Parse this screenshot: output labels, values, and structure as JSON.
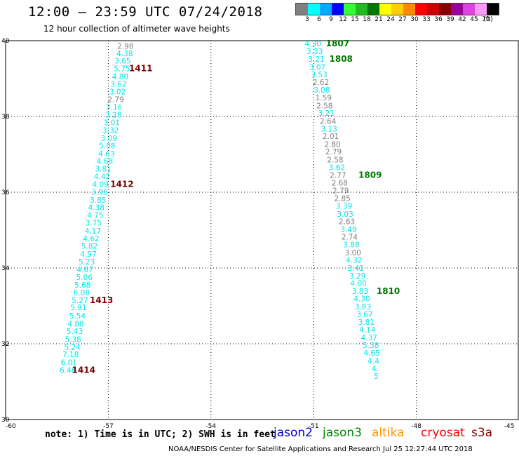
{
  "title": "12:00 – 23:59 UTC 07/24/2018",
  "subtitle": "12 hour collection of altimeter wave heights",
  "legend": {
    "unit": "(ft)",
    "bins": [
      {
        "label": "3",
        "color": "#808080"
      },
      {
        "label": "6",
        "color": "#00ffff"
      },
      {
        "label": "9",
        "color": "#00aaff"
      },
      {
        "label": "12",
        "color": "#0000ff"
      },
      {
        "label": "15",
        "color": "#33ff33"
      },
      {
        "label": "18",
        "color": "#22bb22"
      },
      {
        "label": "21",
        "color": "#007700"
      },
      {
        "label": "24",
        "color": "#ffff00"
      },
      {
        "label": "27",
        "color": "#ffcc00"
      },
      {
        "label": "30",
        "color": "#ff8800"
      },
      {
        "label": "33",
        "color": "#ff0000"
      },
      {
        "label": "36",
        "color": "#cc0000"
      },
      {
        "label": "39",
        "color": "#880000"
      },
      {
        "label": "42",
        "color": "#990099"
      },
      {
        "label": "45",
        "color": "#dd44dd"
      },
      {
        "label": "70",
        "color": "#ff99ff"
      },
      {
        "label": "",
        "color": "#000000"
      }
    ]
  },
  "axes": {
    "lon_ticks": [
      "-60",
      "-57",
      "-54",
      "-51",
      "-48",
      "-45"
    ],
    "lat_ticks": [
      "40",
      "38",
      "36",
      "34",
      "32",
      "30"
    ]
  },
  "track_a": [
    {
      "lon": -56.5,
      "lat": 39.86,
      "v": "2.98",
      "c": "gray"
    },
    {
      "lon": -56.52,
      "lat": 39.67,
      "v": "4.38",
      "c": "cyan"
    },
    {
      "lon": -56.58,
      "lat": 39.47,
      "v": "3.65",
      "c": "cyan"
    },
    {
      "lon": -56.6,
      "lat": 39.27,
      "v": "5.75",
      "c": "cyan"
    },
    {
      "lon": -56.65,
      "lat": 39.06,
      "v": "4.80",
      "c": "cyan"
    },
    {
      "lon": -56.7,
      "lat": 38.86,
      "v": "3.62",
      "c": "cyan"
    },
    {
      "lon": -56.73,
      "lat": 38.66,
      "v": "3.02",
      "c": "cyan"
    },
    {
      "lon": -56.78,
      "lat": 38.45,
      "v": "2.79",
      "c": "gray"
    },
    {
      "lon": -56.83,
      "lat": 38.25,
      "v": "3.16",
      "c": "cyan"
    },
    {
      "lon": -56.85,
      "lat": 38.05,
      "v": "3.28",
      "c": "cyan"
    },
    {
      "lon": -56.9,
      "lat": 37.84,
      "v": "3.01",
      "c": "cyan"
    },
    {
      "lon": -56.93,
      "lat": 37.64,
      "v": "3.32",
      "c": "cyan"
    },
    {
      "lon": -56.98,
      "lat": 37.43,
      "v": "3.09",
      "c": "cyan"
    },
    {
      "lon": -57.03,
      "lat": 37.23,
      "v": "5.08",
      "c": "cyan"
    },
    {
      "lon": -57.05,
      "lat": 37.02,
      "v": "4.63",
      "c": "cyan"
    },
    {
      "lon": -57.1,
      "lat": 36.82,
      "v": "4.68",
      "c": "cyan"
    },
    {
      "lon": -57.15,
      "lat": 36.62,
      "v": "3.81",
      "c": "cyan"
    },
    {
      "lon": -57.18,
      "lat": 36.42,
      "v": "4.42",
      "c": "cyan"
    },
    {
      "lon": -57.23,
      "lat": 36.21,
      "v": "4.09",
      "c": "cyan"
    },
    {
      "lon": -57.25,
      "lat": 36.01,
      "v": "3.96",
      "c": "cyan"
    },
    {
      "lon": -57.3,
      "lat": 35.8,
      "v": "3.85",
      "c": "cyan"
    },
    {
      "lon": -57.35,
      "lat": 35.6,
      "v": "4.38",
      "c": "cyan"
    },
    {
      "lon": -57.38,
      "lat": 35.4,
      "v": "4.75",
      "c": "cyan"
    },
    {
      "lon": -57.43,
      "lat": 35.19,
      "v": "3.75",
      "c": "cyan"
    },
    {
      "lon": -57.45,
      "lat": 34.98,
      "v": "4.17",
      "c": "cyan"
    },
    {
      "lon": -57.5,
      "lat": 34.78,
      "v": "4.62",
      "c": "cyan"
    },
    {
      "lon": -57.55,
      "lat": 34.58,
      "v": "5.82",
      "c": "cyan"
    },
    {
      "lon": -57.58,
      "lat": 34.37,
      "v": "4.97",
      "c": "cyan"
    },
    {
      "lon": -57.63,
      "lat": 34.17,
      "v": "5.23",
      "c": "cyan"
    },
    {
      "lon": -57.68,
      "lat": 33.96,
      "v": "4.67",
      "c": "cyan"
    },
    {
      "lon": -57.7,
      "lat": 33.76,
      "v": "5.06",
      "c": "cyan"
    },
    {
      "lon": -57.75,
      "lat": 33.56,
      "v": "5.68",
      "c": "cyan"
    },
    {
      "lon": -57.78,
      "lat": 33.35,
      "v": "6.08",
      "c": "cyan"
    },
    {
      "lon": -57.83,
      "lat": 33.15,
      "v": "5.27",
      "c": "cyan"
    },
    {
      "lon": -57.87,
      "lat": 32.96,
      "v": "5.91",
      "c": "cyan"
    },
    {
      "lon": -57.9,
      "lat": 32.74,
      "v": "5.54",
      "c": "cyan"
    },
    {
      "lon": -57.95,
      "lat": 32.53,
      "v": "4.88",
      "c": "cyan"
    },
    {
      "lon": -57.98,
      "lat": 32.33,
      "v": "5.43",
      "c": "cyan"
    },
    {
      "lon": -58.03,
      "lat": 32.12,
      "v": "5.38",
      "c": "cyan"
    },
    {
      "lon": -58.05,
      "lat": 31.92,
      "v": "5.24",
      "c": "cyan"
    },
    {
      "lon": -58.1,
      "lat": 31.72,
      "v": "7.18",
      "c": "cyan"
    },
    {
      "lon": -58.15,
      "lat": 31.51,
      "v": "6.01",
      "c": "cyan"
    },
    {
      "lon": -58.18,
      "lat": 31.31,
      "v": "6.46",
      "c": "cyan"
    }
  ],
  "track_b": [
    {
      "lon": -51.02,
      "lat": 39.93,
      "v": "4.30",
      "c": "cyan"
    },
    {
      "lon": -50.97,
      "lat": 39.72,
      "v": "3.33",
      "c": "cyan"
    },
    {
      "lon": -50.92,
      "lat": 39.52,
      "v": "3.21",
      "c": "cyan"
    },
    {
      "lon": -50.89,
      "lat": 39.31,
      "v": "3.07",
      "c": "cyan"
    },
    {
      "lon": -50.84,
      "lat": 39.11,
      "v": "3.53",
      "c": "cyan"
    },
    {
      "lon": -50.79,
      "lat": 38.91,
      "v": "2.62",
      "c": "gray"
    },
    {
      "lon": -50.76,
      "lat": 38.7,
      "v": "3.08",
      "c": "cyan"
    },
    {
      "lon": -50.71,
      "lat": 38.5,
      "v": "1.59",
      "c": "gray"
    },
    {
      "lon": -50.68,
      "lat": 38.29,
      "v": "2.58",
      "c": "gray"
    },
    {
      "lon": -50.63,
      "lat": 38.09,
      "v": "3.21",
      "c": "cyan"
    },
    {
      "lon": -50.58,
      "lat": 37.88,
      "v": "2.64",
      "c": "gray"
    },
    {
      "lon": -50.55,
      "lat": 37.68,
      "v": "3.13",
      "c": "cyan"
    },
    {
      "lon": -50.5,
      "lat": 37.48,
      "v": "2.01",
      "c": "gray"
    },
    {
      "lon": -50.45,
      "lat": 37.27,
      "v": "2.80",
      "c": "gray"
    },
    {
      "lon": -50.42,
      "lat": 37.07,
      "v": "2.79",
      "c": "gray"
    },
    {
      "lon": -50.37,
      "lat": 36.86,
      "v": "2.58",
      "c": "gray"
    },
    {
      "lon": -50.32,
      "lat": 36.66,
      "v": "3.62",
      "c": "cyan"
    },
    {
      "lon": -50.29,
      "lat": 36.45,
      "v": "2.77",
      "c": "gray"
    },
    {
      "lon": -50.24,
      "lat": 36.25,
      "v": "2.68",
      "c": "gray"
    },
    {
      "lon": -50.21,
      "lat": 36.05,
      "v": "2.79",
      "c": "gray"
    },
    {
      "lon": -50.16,
      "lat": 35.84,
      "v": "2.85",
      "c": "gray"
    },
    {
      "lon": -50.11,
      "lat": 35.64,
      "v": "3.39",
      "c": "cyan"
    },
    {
      "lon": -50.08,
      "lat": 35.43,
      "v": "3.03",
      "c": "cyan"
    },
    {
      "lon": -50.03,
      "lat": 35.23,
      "v": "2.63",
      "c": "gray"
    },
    {
      "lon": -49.98,
      "lat": 35.02,
      "v": "3.49",
      "c": "cyan"
    },
    {
      "lon": -49.95,
      "lat": 34.82,
      "v": "2.74",
      "c": "gray"
    },
    {
      "lon": -49.9,
      "lat": 34.62,
      "v": "3.88",
      "c": "cyan"
    },
    {
      "lon": -49.85,
      "lat": 34.41,
      "v": "3.00",
      "c": "gray"
    },
    {
      "lon": -49.82,
      "lat": 34.21,
      "v": "4.32",
      "c": "cyan"
    },
    {
      "lon": -49.77,
      "lat": 34.0,
      "v": "3.41",
      "c": "cyan"
    },
    {
      "lon": -49.72,
      "lat": 33.8,
      "v": "3.29",
      "c": "cyan"
    },
    {
      "lon": -49.69,
      "lat": 33.6,
      "v": "4.00",
      "c": "cyan"
    },
    {
      "lon": -49.64,
      "lat": 33.39,
      "v": "3.83",
      "c": "cyan"
    },
    {
      "lon": -49.59,
      "lat": 33.19,
      "v": "4.30",
      "c": "cyan"
    },
    {
      "lon": -49.56,
      "lat": 32.98,
      "v": "3.83",
      "c": "cyan"
    },
    {
      "lon": -49.51,
      "lat": 32.78,
      "v": "3.67",
      "c": "cyan"
    },
    {
      "lon": -49.46,
      "lat": 32.57,
      "v": "3.81",
      "c": "cyan"
    },
    {
      "lon": -49.43,
      "lat": 32.37,
      "v": "4.14",
      "c": "cyan"
    },
    {
      "lon": -49.38,
      "lat": 32.17,
      "v": "4.37",
      "c": "cyan"
    },
    {
      "lon": -49.33,
      "lat": 31.96,
      "v": "5.38",
      "c": "cyan"
    },
    {
      "lon": -49.3,
      "lat": 31.76,
      "v": "4.65",
      "c": "cyan"
    },
    {
      "lon": -49.25,
      "lat": 31.55,
      "v": "4.4",
      "c": "cyan"
    },
    {
      "lon": -49.2,
      "lat": 31.35,
      "v": "4.",
      "c": "cyan"
    },
    {
      "lon": -49.17,
      "lat": 31.15,
      "v": "5",
      "c": "cyan"
    }
  ],
  "times_a": [
    {
      "lon": -56.05,
      "lat": 39.27,
      "t": "1411"
    },
    {
      "lon": -56.6,
      "lat": 36.21,
      "t": "1412"
    },
    {
      "lon": -57.2,
      "lat": 33.15,
      "t": "1413"
    },
    {
      "lon": -57.72,
      "lat": 31.31,
      "t": "1414"
    }
  ],
  "times_b": [
    {
      "lon": -50.3,
      "lat": 39.93,
      "t": "1807"
    },
    {
      "lon": -50.2,
      "lat": 39.52,
      "t": "1808"
    },
    {
      "lon": -49.35,
      "lat": 36.45,
      "t": "1809"
    },
    {
      "lon": -48.82,
      "lat": 33.39,
      "t": "1810"
    }
  ],
  "colors": {
    "gray": "#808080",
    "cyan": "#00e5ee",
    "time_a": "#7a0000",
    "time_b": "#007700"
  },
  "note": "note:  1) Time is in UTC;  2) SWH is in feet",
  "satellites": [
    {
      "name": "jason2",
      "color": "#0000cc"
    },
    {
      "name": "jason3",
      "color": "#008800"
    },
    {
      "name": "altika",
      "color": "#ff9900"
    },
    {
      "name": "cryosat",
      "color": "#ff0000"
    },
    {
      "name": "s3a",
      "color": "#880000"
    }
  ],
  "footer": "NOAA/NESDIS Center for Satellite Applications and Research    Jul 25 12:27:44 UTC 2018"
}
